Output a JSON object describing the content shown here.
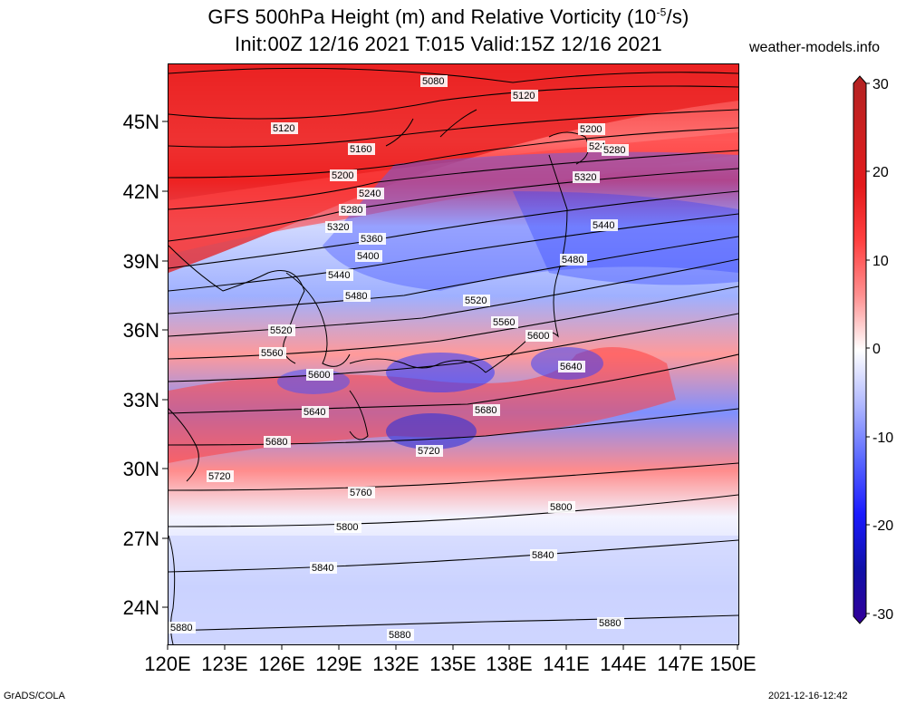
{
  "title": {
    "line1_main": "GFS 500hPa Height (m) and Relative Vorticity (10",
    "line1_sup": "-5",
    "line1_tail": "/s)",
    "line2": "Init:00Z 12/16 2021 T:015 Valid:15Z 12/16 2021"
  },
  "site": "weather-models.info",
  "footer": {
    "left": "GrADS/COLA",
    "right": "2021-12-16-12:42"
  },
  "axes": {
    "lat_ticks": [
      "45N",
      "42N",
      "39N",
      "36N",
      "33N",
      "30N",
      "27N",
      "24N"
    ],
    "lon_ticks": [
      "120E",
      "123E",
      "126E",
      "129E",
      "132E",
      "135E",
      "138E",
      "141E",
      "144E",
      "147E",
      "150E"
    ]
  },
  "colorbar": {
    "ticks": [
      "30",
      "20",
      "10",
      "0",
      "-10",
      "-20",
      "-30"
    ],
    "colors": [
      "#b22222",
      "#e31a1c",
      "#ff3b3b",
      "#ff8080",
      "#ffc0c0",
      "#ffffff",
      "#c0c8ff",
      "#8090ff",
      "#3a3aff",
      "#1a1acd",
      "#330099"
    ]
  },
  "contours": [
    {
      "value": "5080"
    },
    {
      "value": "5120"
    },
    {
      "value": "5120"
    },
    {
      "value": "5160"
    },
    {
      "value": "5200"
    },
    {
      "value": "5200"
    },
    {
      "value": "5240"
    },
    {
      "value": "524"
    },
    {
      "value": "5280"
    },
    {
      "value": "5280"
    },
    {
      "value": "5320"
    },
    {
      "value": "5320"
    },
    {
      "value": "5360"
    },
    {
      "value": "5400"
    },
    {
      "value": "5440"
    },
    {
      "value": "5440"
    },
    {
      "value": "5480"
    },
    {
      "value": "5480"
    },
    {
      "value": "5520"
    },
    {
      "value": "5520"
    },
    {
      "value": "5560"
    },
    {
      "value": "5560"
    },
    {
      "value": "5600"
    },
    {
      "value": "5600"
    },
    {
      "value": "5640"
    },
    {
      "value": "5640"
    },
    {
      "value": "5680"
    },
    {
      "value": "5680"
    },
    {
      "value": "5720"
    },
    {
      "value": "5720"
    },
    {
      "value": "5760"
    },
    {
      "value": "5800"
    },
    {
      "value": "5800"
    },
    {
      "value": "5840"
    },
    {
      "value": "5840"
    },
    {
      "value": "5880"
    },
    {
      "value": "5880"
    },
    {
      "value": "5880"
    }
  ]
}
